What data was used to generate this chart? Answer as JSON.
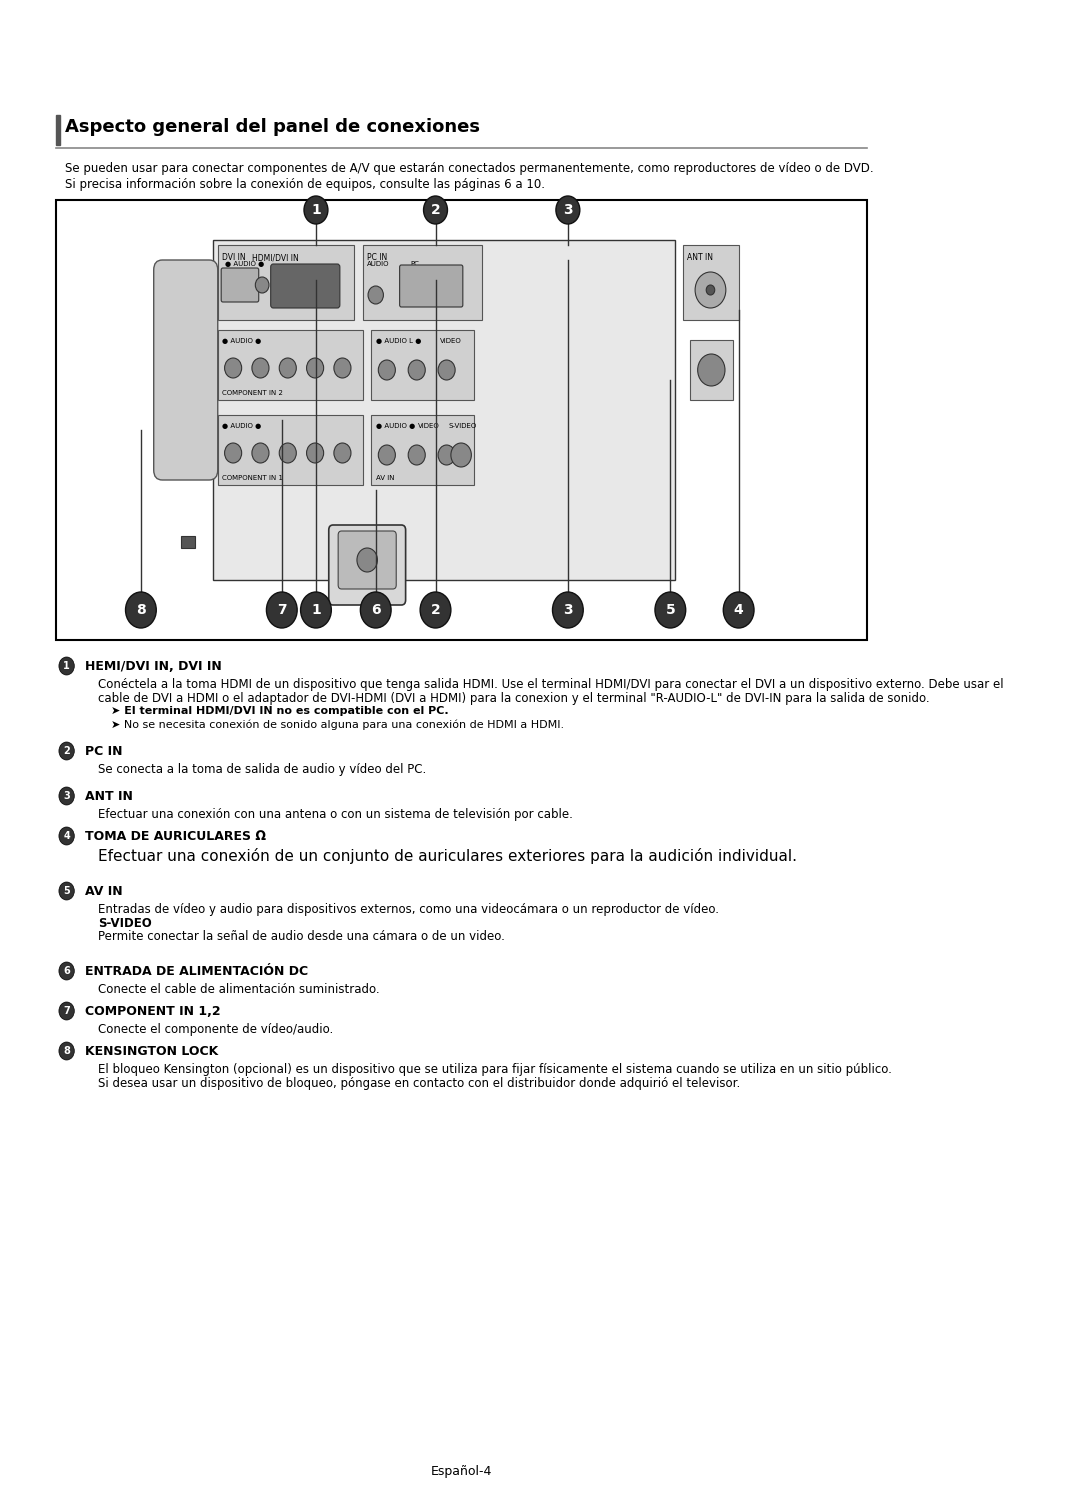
{
  "title": "Aspecto general del panel de conexiones",
  "subtitle_line1": "Se pueden usar para conectar componentes de A/V que estarán conectados permanentemente, como reproductores de vídeo o de DVD.",
  "subtitle_line2": "Si precisa información sobre la conexión de equipos, consulte las páginas 6 a 10.",
  "bg_color": "#ffffff",
  "sections": [
    {
      "number": "1",
      "title": "HEMI/DVI IN, DVI IN",
      "body": [
        "Conéctela a la toma HDMI de un dispositivo que tenga salida HDMI. Use el terminal HDMI/DVI para conectar el DVI a un dispositivo externo. Debe usar el",
        "cable de DVI a HDMI o el adaptador de DVI-HDMI (DVI a HDMI) para la conexion y el terminal \"R-AUDIO-L\" de DVI-IN para la salida de sonido."
      ],
      "notes": [
        [
          "bold",
          "El terminal HDMI/DVI IN no es compatible con el PC."
        ],
        [
          "normal",
          "No se necesita conexión de sonido alguna para una conexión de HDMI a HDMI."
        ]
      ]
    },
    {
      "number": "2",
      "title": "PC IN",
      "body": [
        "Se conecta a la toma de salida de audio y vídeo del PC."
      ],
      "notes": []
    },
    {
      "number": "3",
      "title": "ANT IN",
      "body": [
        "Efectuar una conexión con una antena o con un sistema de televisión por cable."
      ],
      "notes": []
    },
    {
      "number": "4",
      "title": "TOMA DE AURICULARES Ω",
      "body_large": "Efectuar una conexión de un conjunto de auriculares exteriores para la audición individual.",
      "notes": []
    },
    {
      "number": "5",
      "title": "AV IN",
      "body": [
        "Entradas de vídeo y audio para dispositivos externos, como una videocámara o un reproductor de vídeo."
      ],
      "subhead": "S-VIDEO",
      "subbody": [
        "Permite conectar la señal de audio desde una cámara o de un video."
      ],
      "notes": []
    },
    {
      "number": "6",
      "title": "ENTRADA DE ALIMENTACIÓN DC",
      "body": [
        "Conecte el cable de alimentación suministrado."
      ],
      "notes": []
    },
    {
      "number": "7",
      "title": "COMPONENT IN 1,2",
      "body": [
        "Conecte el componente de vídeo/audio."
      ],
      "notes": []
    },
    {
      "number": "8",
      "title": "KENSINGTON LOCK",
      "body": [
        "El bloqueo Kensington (opcional) es un dispositivo que se utiliza para fijar físicamente el sistema cuando se utiliza en un sitio público.",
        "Si desea usar un dispositivo de bloqueo, póngase en contacto con el distribuidor donde adquirió el televisor."
      ],
      "notes": []
    }
  ],
  "footer": "Español-4"
}
